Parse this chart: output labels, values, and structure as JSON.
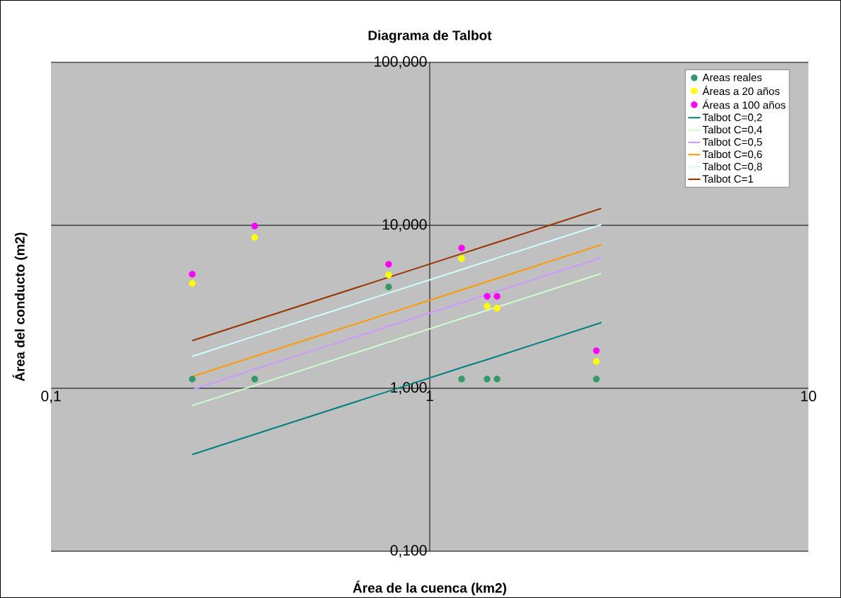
{
  "chart_data": {
    "type": "scatter",
    "title": "Diagrama de Talbot",
    "xlabel": "Área de la cuenca (km2)",
    "ylabel": "Área del conducto (m2)",
    "log": "xy",
    "grid": "y",
    "legend": "top right",
    "marker": "circle",
    "xlim": [
      0.1,
      10
    ],
    "ylim": [
      0.1,
      100
    ],
    "xticks": [
      {
        "value": 0.1,
        "label": "0,1"
      },
      1,
      10
    ],
    "yticks": [
      {
        "value": 0.1,
        "label": "0,100"
      },
      {
        "value": 1,
        "label": "1,000"
      },
      {
        "value": 10,
        "label": "10,000"
      },
      {
        "value": 100,
        "label": "100,000"
      }
    ],
    "x": [
      0.236,
      0.345,
      0.779,
      1.214,
      1.418,
      1.506,
      2.755
    ],
    "series": [
      {
        "name": "Areas reales",
        "color": "#339966",
        "values": [
          1.14,
          1.14,
          4.19,
          1.14,
          1.14,
          1.14,
          1.14
        ]
      },
      {
        "name": "Áreas a 20 años",
        "color": "#ffff00",
        "values": [
          4.4,
          8.43,
          4.96,
          6.25,
          3.19,
          3.1,
          1.46
        ]
      },
      {
        "name": "Áreas a 100 años",
        "color": "#ff00ff",
        "values": [
          5.01,
          9.9,
          5.77,
          7.26,
          3.67,
          3.67,
          1.7
        ]
      },
      {
        "name": "Talbot C=0,2",
        "type": "line",
        "marker": "none",
        "color": "#008080",
        "x": [
          0.236,
          0.345,
          0.779,
          1.214,
          1.418,
          1.506,
          2.84
        ],
        "values": [
          0.392,
          0.522,
          0.96,
          1.34,
          1.5,
          1.57,
          2.53
        ]
      },
      {
        "name": "Talbot C=0,4",
        "type": "line",
        "marker": "none",
        "color": "#ccffcc",
        "x": [
          0.236,
          0.345,
          0.779,
          1.214,
          1.418,
          1.506,
          2.84
        ],
        "values": [
          0.784,
          1.04,
          1.92,
          2.68,
          3.01,
          3.15,
          5.06
        ]
      },
      {
        "name": "Talbot C=0,5",
        "type": "line",
        "marker": "none",
        "color": "#cc99ff",
        "x": [
          0.236,
          0.345,
          0.779,
          1.214,
          1.418,
          1.506,
          2.84
        ],
        "values": [
          0.98,
          1.31,
          2.4,
          3.35,
          3.76,
          3.94,
          6.33
        ]
      },
      {
        "name": "Talbot C=0,6",
        "type": "line",
        "marker": "none",
        "color": "#ff9900",
        "x": [
          0.236,
          0.345,
          0.779,
          1.214,
          1.418,
          1.506,
          2.84
        ],
        "values": [
          1.18,
          1.57,
          2.88,
          4.01,
          4.51,
          4.72,
          7.6
        ]
      },
      {
        "name": "Talbot C=0,8",
        "type": "line",
        "marker": "none",
        "color": "#ccffff",
        "x": [
          0.236,
          0.345,
          0.779,
          1.214,
          1.418,
          1.506,
          2.84
        ],
        "values": [
          1.57,
          2.09,
          3.84,
          5.35,
          6.02,
          6.3,
          10.1
        ]
      },
      {
        "name": "Talbot C=1",
        "type": "line",
        "marker": "none",
        "color": "#993300",
        "x": [
          0.236,
          0.345,
          0.779,
          1.214,
          1.418,
          1.506,
          2.84
        ],
        "values": [
          1.96,
          2.61,
          4.8,
          6.69,
          7.52,
          7.87,
          12.7
        ]
      }
    ]
  }
}
